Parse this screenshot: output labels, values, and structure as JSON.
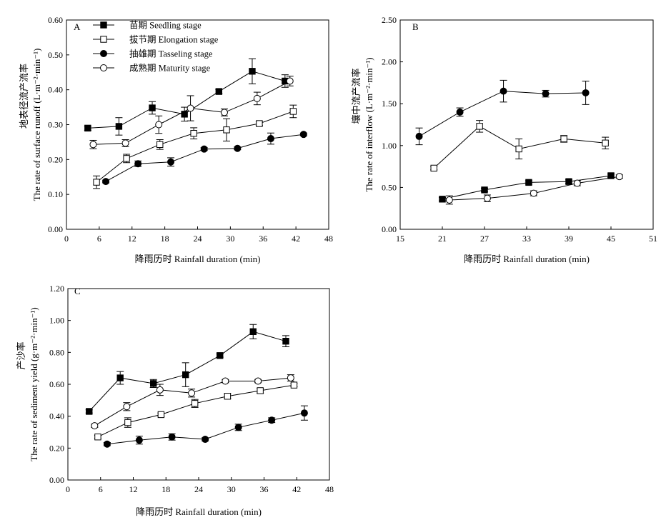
{
  "chart_data": [
    {
      "type": "line",
      "panel": "A",
      "xlabel": "降雨历时 Rainfall duration (min)",
      "ylabel_cn": "地表径流产流率",
      "ylabel_en": "The rate of surface runoff (L·m⁻²·min⁻¹)",
      "xlim": [
        0,
        48
      ],
      "ylim": [
        0,
        0.6
      ],
      "xticks": [
        "0",
        "6",
        "12",
        "18",
        "24",
        "30",
        "36",
        "42",
        "48"
      ],
      "yticks": [
        "0.00",
        "0.10",
        "0.20",
        "0.30",
        "0.40",
        "0.50",
        "0.60"
      ],
      "legend_position": "top-left",
      "series": [
        {
          "name": "苗期 Seedling stage",
          "marker": "square-filled",
          "x": [
            3.9,
            9.6,
            15.7,
            21.6,
            27.9,
            34.0,
            40.0
          ],
          "y": [
            0.29,
            0.295,
            0.348,
            0.33,
            0.395,
            0.453,
            0.425
          ],
          "err": [
            0.006,
            0.025,
            0.018,
            0.02,
            0.006,
            0.036,
            0.018
          ]
        },
        {
          "name": "拔节期 Elongation stage",
          "marker": "square-open",
          "x": [
            5.5,
            11.0,
            17.1,
            23.3,
            29.3,
            35.3,
            41.5
          ],
          "y": [
            0.135,
            0.203,
            0.243,
            0.275,
            0.285,
            0.303,
            0.338
          ],
          "err": [
            0.018,
            0.012,
            0.014,
            0.016,
            0.032,
            0.005,
            0.018
          ]
        },
        {
          "name": "抽雄期 Tasseling stage",
          "marker": "circle-filled",
          "x": [
            7.2,
            13.1,
            19.1,
            25.2,
            31.3,
            37.4,
            43.4
          ],
          "y": [
            0.137,
            0.188,
            0.193,
            0.23,
            0.232,
            0.26,
            0.272
          ],
          "err": [
            0.004,
            0.008,
            0.012,
            0.004,
            0.004,
            0.016,
            0.004
          ]
        },
        {
          "name": "成熟期 Maturity stage",
          "marker": "circle-open",
          "x": [
            4.9,
            10.8,
            16.9,
            22.7,
            28.9,
            34.9,
            40.9
          ],
          "y": [
            0.243,
            0.247,
            0.3,
            0.347,
            0.335,
            0.375,
            0.425
          ],
          "err": [
            0.012,
            0.01,
            0.025,
            0.036,
            0.01,
            0.018,
            0.014
          ]
        }
      ]
    },
    {
      "type": "line",
      "panel": "B",
      "xlabel": "降雨历时 Rainfall duration (min)",
      "ylabel_cn": "壤中流产流率",
      "ylabel_en": "The rate of interflow (L·m⁻²·min⁻¹)",
      "xlim": [
        15,
        51
      ],
      "ylim": [
        0,
        2.5
      ],
      "xticks": [
        "15",
        "21",
        "27",
        "33",
        "39",
        "45",
        "51"
      ],
      "yticks": [
        "0.00",
        "0.50",
        "1.00",
        "1.50",
        "2.00",
        "2.50"
      ],
      "series": [
        {
          "marker": "square-filled",
          "x": [
            21.0,
            27.0,
            33.3,
            39.0,
            45.0
          ],
          "y": [
            0.36,
            0.47,
            0.56,
            0.57,
            0.64
          ],
          "err": [
            0.02,
            0.02,
            0.02,
            0.02,
            0.02
          ]
        },
        {
          "marker": "square-open",
          "x": [
            19.8,
            26.3,
            31.9,
            38.3,
            44.2
          ],
          "y": [
            0.73,
            1.23,
            0.96,
            1.08,
            1.03
          ],
          "err": [
            0.02,
            0.07,
            0.12,
            0.04,
            0.07
          ]
        },
        {
          "marker": "circle-filled",
          "x": [
            17.7,
            23.5,
            29.7,
            35.7,
            41.4
          ],
          "y": [
            1.11,
            1.4,
            1.65,
            1.62,
            1.63
          ],
          "err": [
            0.1,
            0.05,
            0.13,
            0.04,
            0.14
          ]
        },
        {
          "marker": "circle-open",
          "x": [
            22.0,
            27.4,
            34.0,
            40.2,
            46.2
          ],
          "y": [
            0.35,
            0.37,
            0.43,
            0.55,
            0.63
          ],
          "err": [
            0.05,
            0.04,
            0.03,
            0.03,
            0.02
          ]
        }
      ]
    },
    {
      "type": "line",
      "panel": "C",
      "xlabel": "降雨历时 Rainfall duration (min)",
      "ylabel_cn": "产沙率",
      "ylabel_en": "The rate of sediment yield (g·m⁻²·min⁻¹)",
      "xlim": [
        0,
        48
      ],
      "ylim": [
        0,
        1.2
      ],
      "xticks": [
        "0",
        "6",
        "12",
        "18",
        "24",
        "30",
        "36",
        "42",
        "48"
      ],
      "yticks": [
        "0.00",
        "0.20",
        "0.40",
        "0.60",
        "0.80",
        "1.00",
        "1.20"
      ],
      "series": [
        {
          "marker": "square-filled",
          "x": [
            3.9,
            9.6,
            15.7,
            21.6,
            27.9,
            34.0,
            40.0
          ],
          "y": [
            0.43,
            0.64,
            0.605,
            0.66,
            0.78,
            0.93,
            0.87
          ],
          "err": [
            0.01,
            0.04,
            0.025,
            0.075,
            0.01,
            0.045,
            0.035
          ]
        },
        {
          "marker": "square-open",
          "x": [
            5.5,
            11.0,
            17.1,
            23.3,
            29.3,
            35.3,
            41.5
          ],
          "y": [
            0.27,
            0.36,
            0.41,
            0.48,
            0.525,
            0.56,
            0.595
          ],
          "err": [
            0.01,
            0.03,
            0.01,
            0.025,
            0.015,
            0.015,
            0.01
          ]
        },
        {
          "marker": "circle-filled",
          "x": [
            7.2,
            13.1,
            19.1,
            25.2,
            31.3,
            37.4,
            43.4
          ],
          "y": [
            0.225,
            0.25,
            0.27,
            0.255,
            0.33,
            0.375,
            0.42
          ],
          "err": [
            0.01,
            0.025,
            0.02,
            0.01,
            0.02,
            0.015,
            0.045
          ]
        },
        {
          "marker": "circle-open",
          "x": [
            4.9,
            10.8,
            16.9,
            22.7,
            28.9,
            34.9,
            40.9
          ],
          "y": [
            0.34,
            0.46,
            0.565,
            0.545,
            0.62,
            0.62,
            0.64
          ],
          "err": [
            0.01,
            0.025,
            0.035,
            0.025,
            0.01,
            0.01,
            0.02
          ]
        }
      ]
    }
  ]
}
